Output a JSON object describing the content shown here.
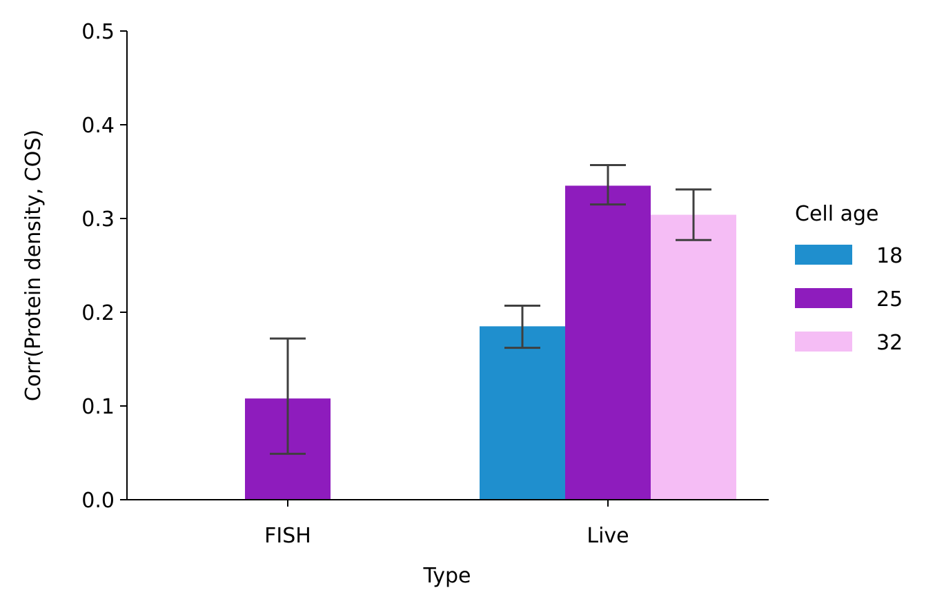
{
  "chart_data": {
    "type": "bar",
    "xlabel": "Type",
    "ylabel": "Corr(Protein density, COS)",
    "ylim": [
      0,
      0.5
    ],
    "yticks": [
      "0.0",
      "0.1",
      "0.2",
      "0.3",
      "0.4",
      "0.5"
    ],
    "categories": [
      "FISH",
      "Live"
    ],
    "legend": {
      "title": "Cell age",
      "placement": "right"
    },
    "series": [
      {
        "name": "18",
        "color": "#1f8fce",
        "values": [
          null,
          0.185
        ],
        "err_low": [
          null,
          0.162
        ],
        "err_high": [
          null,
          0.207
        ]
      },
      {
        "name": "25",
        "color": "#8e1cbd",
        "values": [
          0.108,
          0.335
        ],
        "err_low": [
          0.049,
          0.315
        ],
        "err_high": [
          0.172,
          0.357
        ]
      },
      {
        "name": "32",
        "color": "#f5bdf5",
        "values": [
          null,
          0.304
        ],
        "err_low": [
          null,
          0.277
        ],
        "err_high": [
          null,
          0.331
        ]
      }
    ],
    "error_bar_color": "#3f3f3f",
    "grid": false
  }
}
